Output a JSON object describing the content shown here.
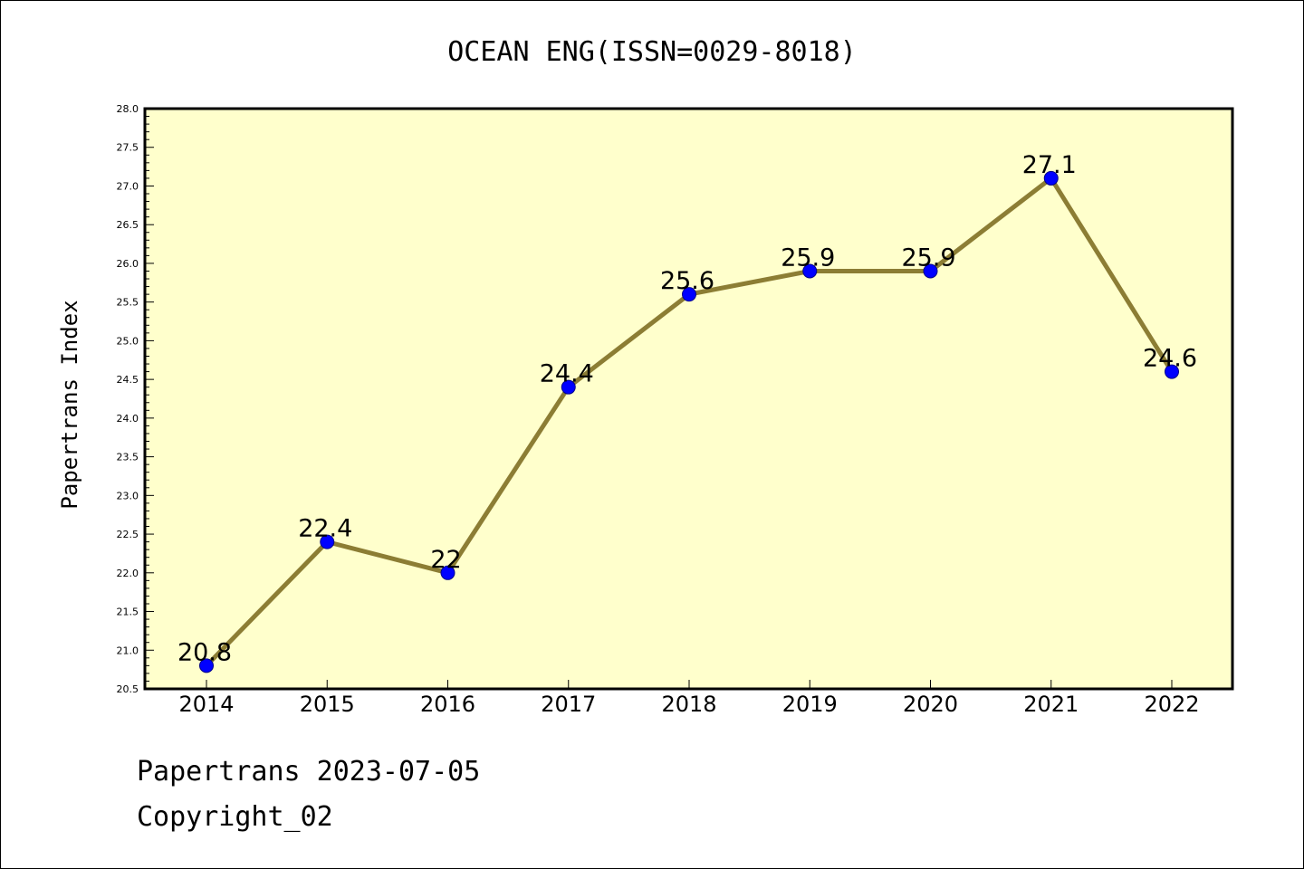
{
  "chart_data": {
    "type": "line",
    "title": "OCEAN ENG(ISSN=0029-8018)",
    "xlabel": "",
    "ylabel": "Papertrans Index",
    "categories": [
      "2014",
      "2015",
      "2016",
      "2017",
      "2018",
      "2019",
      "2020",
      "2021",
      "2022"
    ],
    "values": [
      20.8,
      22.4,
      22,
      24.4,
      25.6,
      25.9,
      25.9,
      27.1,
      24.6
    ],
    "data_labels": [
      "20.8",
      "22.4",
      "22",
      "24.4",
      "25.6",
      "25.9",
      "25.9",
      "27.1",
      "24.6"
    ],
    "ylim": [
      20.5,
      28.0
    ],
    "yticks": [
      "20.5",
      "21.0",
      "21.5",
      "22.0",
      "22.5",
      "23.0",
      "23.5",
      "24.0",
      "24.5",
      "25.0",
      "25.5",
      "26.0",
      "26.5",
      "27.0",
      "27.5",
      "28.0"
    ],
    "grid": false,
    "colors": {
      "line": "#8c7d34",
      "marker": "#0000ff",
      "plot_background": "#ffffcc"
    }
  },
  "footer": {
    "line1": "Papertrans 2023-07-05",
    "line2": "Copyright_02"
  }
}
